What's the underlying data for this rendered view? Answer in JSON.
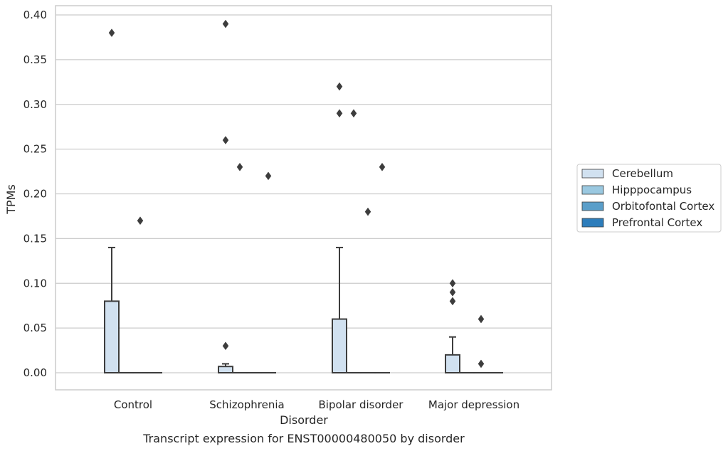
{
  "caption": "Transcript expression for ENST00000480050 by disorder",
  "chart_data": {
    "type": "box",
    "title": "",
    "xlabel": "Disorder",
    "ylabel": "TPMs",
    "ylim": [
      -0.019,
      0.41
    ],
    "yticks": [
      0.0,
      0.05,
      0.1,
      0.15,
      0.2,
      0.25,
      0.3,
      0.35,
      0.4
    ],
    "ytick_labels": [
      "0.00",
      "0.05",
      "0.10",
      "0.15",
      "0.20",
      "0.25",
      "0.30",
      "0.35",
      "0.40"
    ],
    "grid": "horizontal",
    "legend_position": "right",
    "categories": [
      "Control",
      "Schizophrenia",
      "Bipolar disorder",
      "Major depression"
    ],
    "series": [
      {
        "name": "Cerebellum",
        "color": "#d1e1f0",
        "boxes": [
          {
            "q1": 0.0,
            "median": 0.0,
            "q3": 0.08,
            "whisker_low": 0.0,
            "whisker_high": 0.14,
            "outliers": [
              0.38
            ]
          },
          {
            "q1": 0.0,
            "median": 0.0,
            "q3": 0.007,
            "whisker_low": 0.0,
            "whisker_high": 0.01,
            "outliers": [
              0.39,
              0.26,
              0.03
            ]
          },
          {
            "q1": 0.0,
            "median": 0.0,
            "q3": 0.06,
            "whisker_low": 0.0,
            "whisker_high": 0.14,
            "outliers": [
              0.32,
              0.29
            ]
          },
          {
            "q1": 0.0,
            "median": 0.0,
            "q3": 0.02,
            "whisker_low": 0.0,
            "whisker_high": 0.04,
            "outliers": [
              0.1,
              0.09,
              0.08
            ]
          }
        ]
      },
      {
        "name": "Hipppocampus",
        "color": "#9ac8e0",
        "boxes": [
          {
            "q1": 0.0,
            "median": 0.0,
            "q3": 0.0,
            "whisker_low": 0.0,
            "whisker_high": 0.0,
            "outliers": []
          },
          {
            "q1": 0.0,
            "median": 0.0,
            "q3": 0.0,
            "whisker_low": 0.0,
            "whisker_high": 0.0,
            "outliers": [
              0.23
            ]
          },
          {
            "q1": 0.0,
            "median": 0.0,
            "q3": 0.0,
            "whisker_low": 0.0,
            "whisker_high": 0.0,
            "outliers": [
              0.29
            ]
          },
          {
            "q1": 0.0,
            "median": 0.0,
            "q3": 0.0,
            "whisker_low": 0.0,
            "whisker_high": 0.0,
            "outliers": []
          }
        ]
      },
      {
        "name": "Orbitofontal Cortex",
        "color": "#5a9ec9",
        "boxes": [
          {
            "q1": 0.0,
            "median": 0.0,
            "q3": 0.0,
            "whisker_low": 0.0,
            "whisker_high": 0.0,
            "outliers": [
              0.17
            ]
          },
          {
            "q1": 0.0,
            "median": 0.0,
            "q3": 0.0,
            "whisker_low": 0.0,
            "whisker_high": 0.0,
            "outliers": []
          },
          {
            "q1": 0.0,
            "median": 0.0,
            "q3": 0.0,
            "whisker_low": 0.0,
            "whisker_high": 0.0,
            "outliers": [
              0.18
            ]
          },
          {
            "q1": 0.0,
            "median": 0.0,
            "q3": 0.0,
            "whisker_low": 0.0,
            "whisker_high": 0.0,
            "outliers": [
              0.06,
              0.01
            ]
          }
        ]
      },
      {
        "name": "Prefrontal Cortex",
        "color": "#2d7dbb",
        "boxes": [
          {
            "q1": 0.0,
            "median": 0.0,
            "q3": 0.0,
            "whisker_low": 0.0,
            "whisker_high": 0.0,
            "outliers": []
          },
          {
            "q1": 0.0,
            "median": 0.0,
            "q3": 0.0,
            "whisker_low": 0.0,
            "whisker_high": 0.0,
            "outliers": [
              0.22
            ]
          },
          {
            "q1": 0.0,
            "median": 0.0,
            "q3": 0.0,
            "whisker_low": 0.0,
            "whisker_high": 0.0,
            "outliers": [
              0.23
            ]
          },
          {
            "q1": 0.0,
            "median": 0.0,
            "q3": 0.0,
            "whisker_low": 0.0,
            "whisker_high": 0.0,
            "outliers": []
          }
        ]
      }
    ]
  }
}
